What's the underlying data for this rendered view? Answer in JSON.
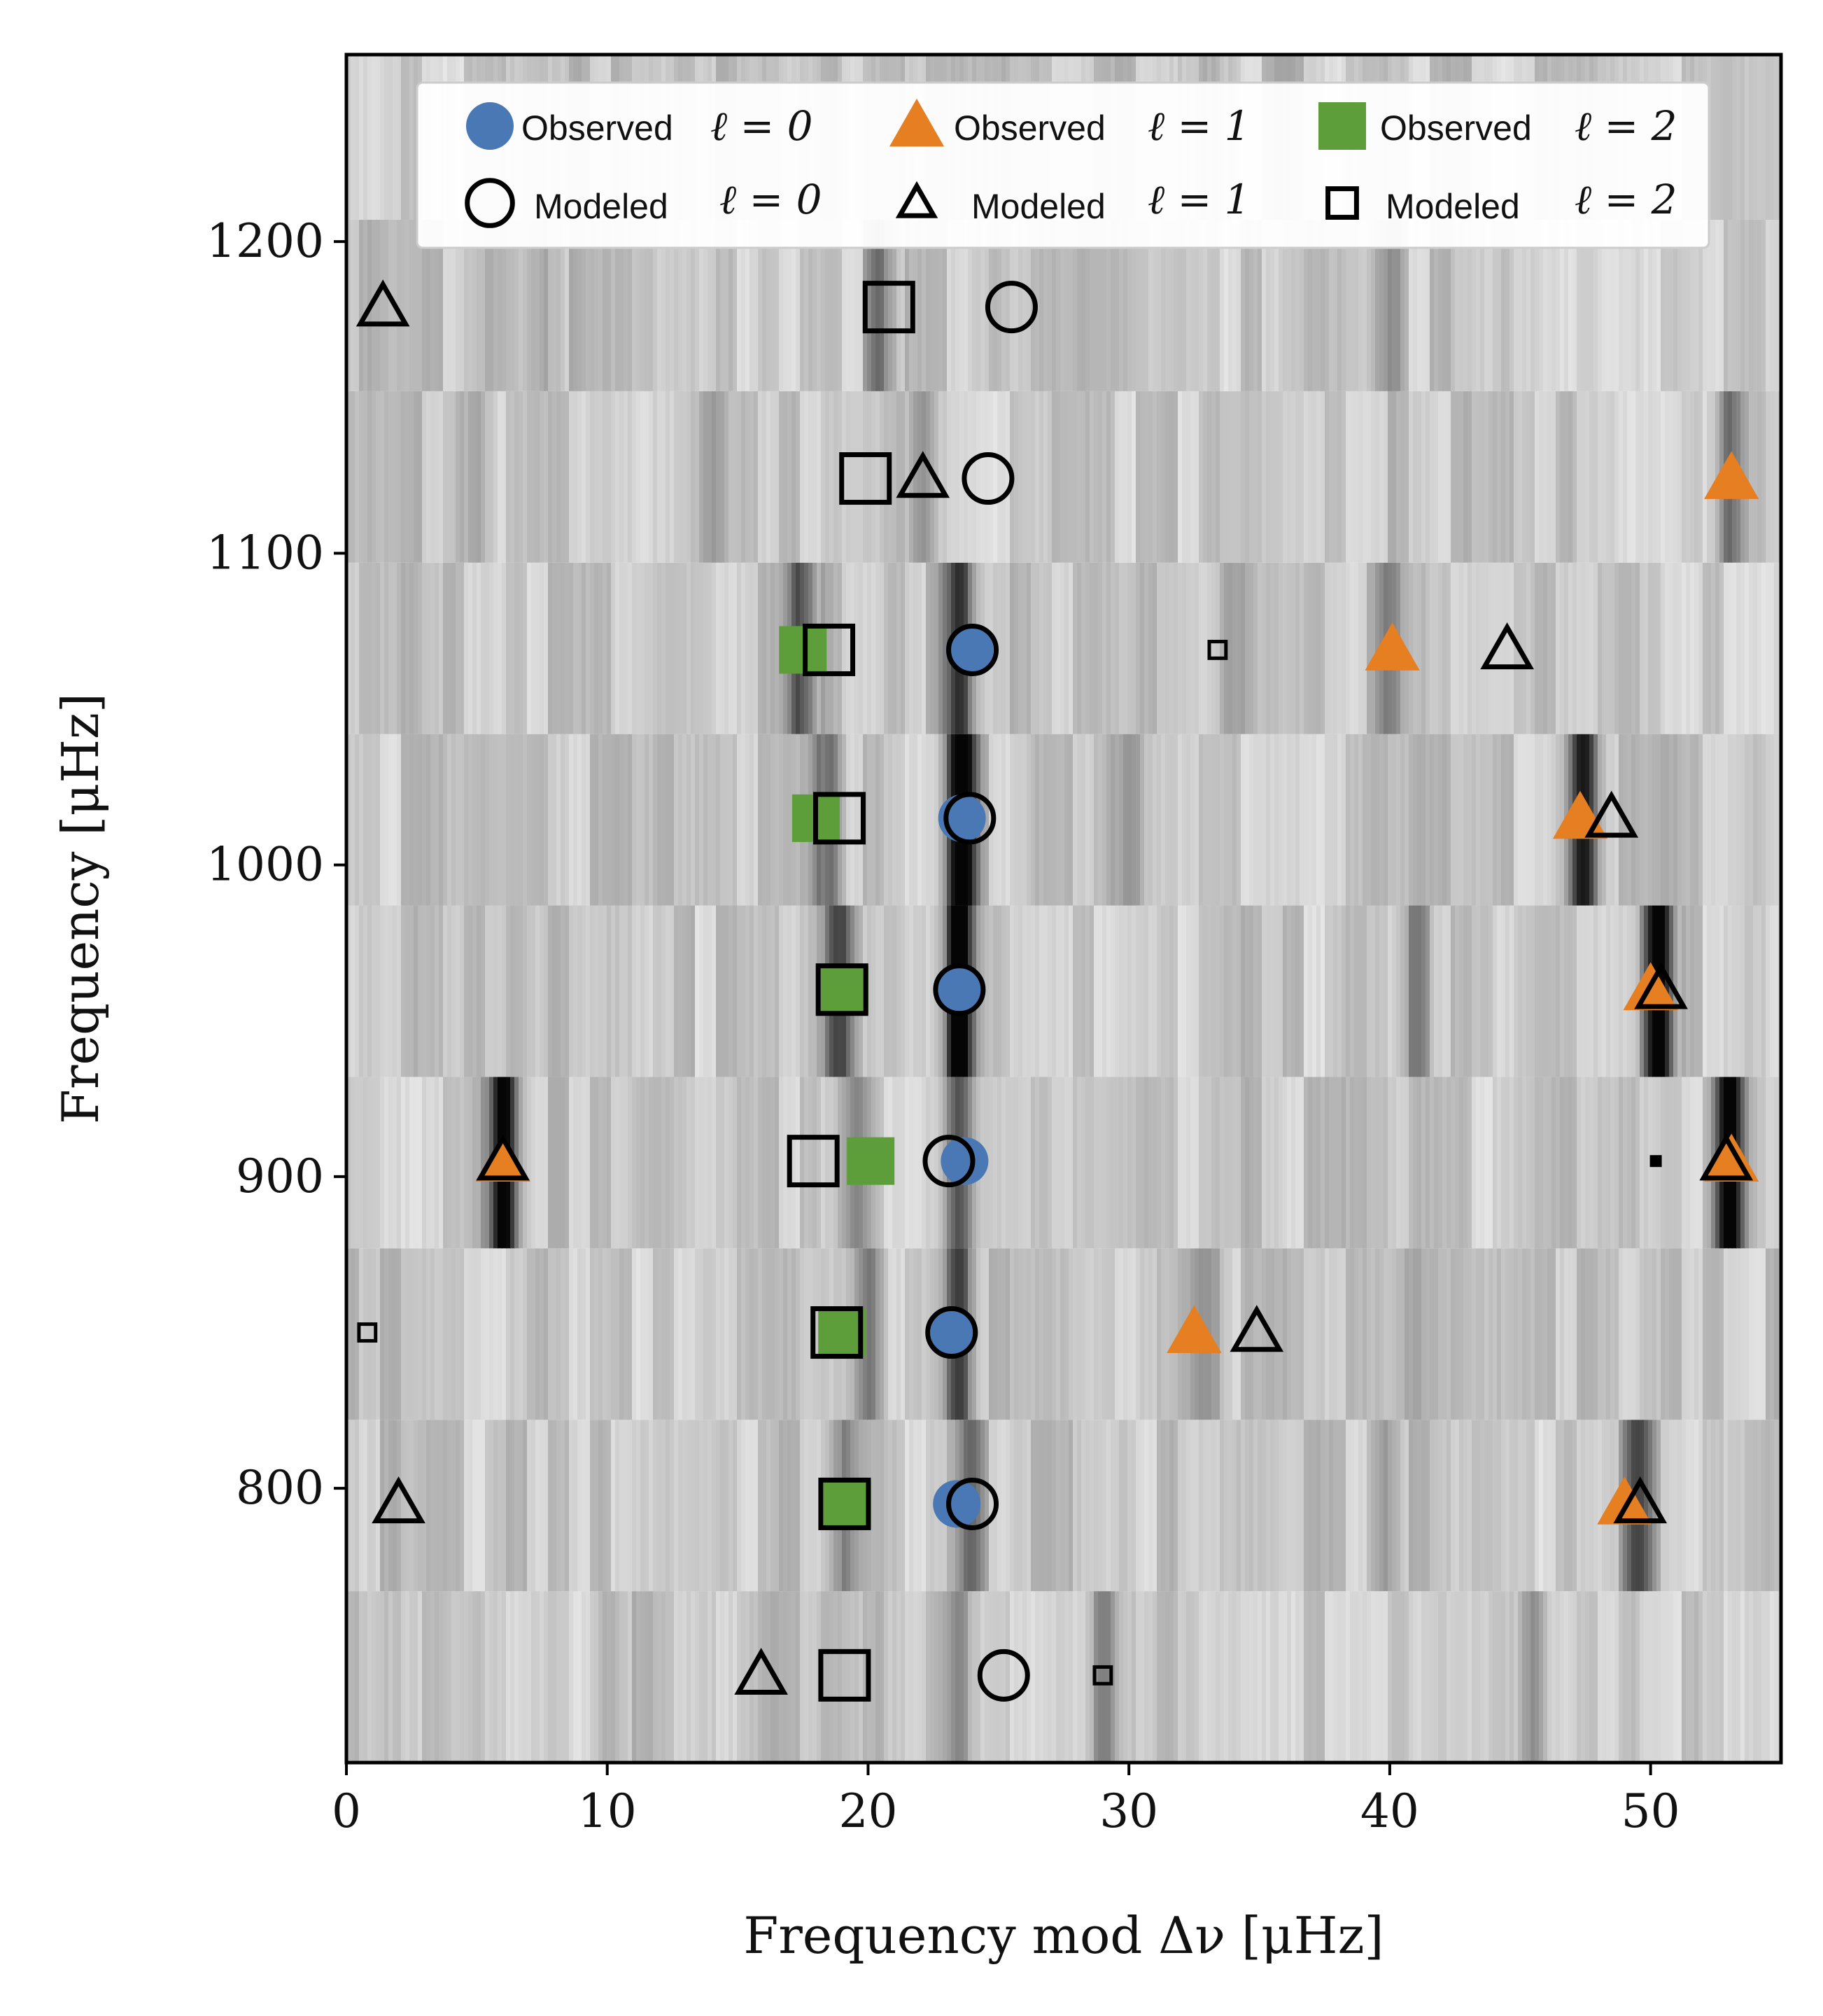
{
  "chart_data": {
    "type": "scatter",
    "title": "",
    "xlabel": "Frequency mod Δν [μHz]",
    "ylabel": "Frequency [μHz]",
    "xlim": [
      0,
      55
    ],
    "ylim": [
      712,
      1260
    ],
    "xticks": [
      0,
      10,
      20,
      30,
      40,
      50
    ],
    "yticks": [
      800,
      900,
      1000,
      1100,
      1200
    ],
    "grid": false,
    "legend_position": "top",
    "background": "grayscale echelle power spectrum (rows of width Δν)",
    "echelle_rows": [
      {
        "y_from": 712,
        "y_to": 767,
        "peaks": [
          [
            23.5,
            0.2
          ],
          [
            29,
            0.25
          ],
          [
            45.5,
            0.3
          ],
          [
            10,
            0.15
          ]
        ]
      },
      {
        "y_from": 767,
        "y_to": 822,
        "peaks": [
          [
            24,
            0.35
          ],
          [
            49.5,
            0.5
          ],
          [
            19,
            0.25
          ],
          [
            40,
            0.2
          ]
        ]
      },
      {
        "y_from": 822,
        "y_to": 877,
        "peaks": [
          [
            23.5,
            0.5
          ],
          [
            20,
            0.35
          ],
          [
            33,
            0.2
          ],
          [
            41,
            0.2
          ]
        ]
      },
      {
        "y_from": 877,
        "y_to": 932,
        "peaks": [
          [
            6,
            0.95
          ],
          [
            23.5,
            0.5
          ],
          [
            53,
            0.9
          ],
          [
            19.5,
            0.3
          ]
        ]
      },
      {
        "y_from": 932,
        "y_to": 987,
        "peaks": [
          [
            23.5,
            0.9
          ],
          [
            18.8,
            0.6
          ],
          [
            50.3,
            1.0
          ],
          [
            41,
            0.25
          ]
        ]
      },
      {
        "y_from": 987,
        "y_to": 1042,
        "peaks": [
          [
            23.6,
            1.0
          ],
          [
            47.4,
            0.75
          ],
          [
            18.5,
            0.4
          ],
          [
            30,
            0.25
          ]
        ]
      },
      {
        "y_from": 1042,
        "y_to": 1097,
        "peaks": [
          [
            23.5,
            0.6
          ],
          [
            17.5,
            0.5
          ],
          [
            40,
            0.3
          ],
          [
            34,
            0.2
          ]
        ]
      },
      {
        "y_from": 1097,
        "y_to": 1152,
        "peaks": [
          [
            22,
            0.3
          ],
          [
            53,
            0.35
          ],
          [
            14,
            0.2
          ],
          [
            5,
            0.2
          ]
        ]
      },
      {
        "y_from": 1152,
        "y_to": 1207,
        "peaks": [
          [
            20.5,
            0.3
          ],
          [
            40,
            0.2
          ],
          [
            8,
            0.15
          ]
        ]
      },
      {
        "y_from": 1207,
        "y_to": 1260,
        "peaks": [
          [
            9,
            0.1
          ],
          [
            36,
            0.1
          ]
        ]
      }
    ],
    "series": [
      {
        "name": "Observed ℓ = 0",
        "marker": "filled-circle",
        "color": "#4a78b5",
        "size": 1,
        "points": [
          [
            23.4,
            795
          ],
          [
            23.3,
            850
          ],
          [
            23.7,
            905
          ],
          [
            23.5,
            960
          ],
          [
            23.6,
            1015
          ],
          [
            23.9,
            1069
          ]
        ]
      },
      {
        "name": "Observed ℓ = 1",
        "marker": "filled-triangle",
        "color": "#e67e22",
        "size": 1,
        "points": [
          [
            49,
            795
          ],
          [
            32.5,
            850
          ],
          [
            6,
            905
          ],
          [
            53.1,
            905
          ],
          [
            50,
            960
          ],
          [
            47.3,
            1015
          ],
          [
            40.1,
            1069
          ],
          [
            53.1,
            1124
          ]
        ]
      },
      {
        "name": "Observed ℓ = 2",
        "marker": "filled-square",
        "color": "#5d9e3a",
        "size": 1,
        "points": [
          [
            19.2,
            795
          ],
          [
            19,
            850
          ],
          [
            20.1,
            905
          ],
          [
            19.1,
            960
          ],
          [
            18,
            1015
          ],
          [
            17.5,
            1069
          ]
        ]
      },
      {
        "name": "Modeled ℓ = 0",
        "marker": "open-circle",
        "color": "#000000",
        "size": 1,
        "points": [
          [
            25.2,
            740
          ],
          [
            24,
            795
          ],
          [
            23.2,
            850
          ],
          [
            23.1,
            905
          ],
          [
            23.5,
            960
          ],
          [
            23.9,
            1015
          ],
          [
            24,
            1069
          ],
          [
            24.6,
            1124
          ],
          [
            25.5,
            1179
          ]
        ]
      },
      {
        "name": "Modeled ℓ = 1",
        "marker": "open-triangle",
        "color": "#000000",
        "size": 1,
        "points": [
          [
            15.9,
            740
          ],
          [
            2,
            795
          ],
          [
            49.6,
            795
          ],
          [
            34.9,
            850
          ],
          [
            6,
            905
          ],
          [
            52.9,
            905
          ],
          [
            50.4,
            960
          ],
          [
            48.5,
            1015
          ],
          [
            44.5,
            1069
          ],
          [
            22.1,
            1124
          ],
          [
            1.4,
            1179
          ]
        ]
      },
      {
        "name": "Modeled ℓ = 2",
        "marker": "open-square",
        "color": "#000000",
        "size": 1,
        "points": [
          [
            29,
            740
          ],
          [
            19.1,
            740
          ],
          [
            19.1,
            795
          ],
          [
            0.8,
            850
          ],
          [
            18.8,
            850
          ],
          [
            17.9,
            905
          ],
          [
            50.2,
            905
          ],
          [
            19,
            960
          ],
          [
            18.9,
            1015
          ],
          [
            33.4,
            1069
          ],
          [
            18.5,
            1069
          ],
          [
            19.9,
            1124
          ],
          [
            20.8,
            1179
          ]
        ]
      },
      {
        "name": "Modeled ℓ = 2 (small)",
        "marker": "small-open-square",
        "color": "#000000",
        "size": 0.35,
        "points": [
          [
            29,
            740
          ],
          [
            0.8,
            850
          ],
          [
            33.4,
            1069
          ]
        ]
      },
      {
        "name": "Modeled (tiny)",
        "marker": "tiny-square",
        "color": "#000000",
        "size": 0.25,
        "points": [
          [
            50.2,
            905
          ]
        ]
      }
    ]
  },
  "legend": {
    "row1": [
      {
        "text": "Observed",
        "math": "ℓ = 0",
        "marker": "filled-circle",
        "color": "#4a78b5"
      },
      {
        "text": "Observed",
        "math": "ℓ = 1",
        "marker": "filled-triangle",
        "color": "#e67e22"
      },
      {
        "text": "Observed",
        "math": "ℓ = 2",
        "marker": "filled-square",
        "color": "#5d9e3a"
      }
    ],
    "row2": [
      {
        "text": "Modeled",
        "math": "ℓ = 0",
        "marker": "open-circle",
        "color": "#000000"
      },
      {
        "text": "Modeled",
        "math": "ℓ = 1",
        "marker": "open-triangle",
        "color": "#000000"
      },
      {
        "text": "Modeled",
        "math": "ℓ = 2",
        "marker": "open-square",
        "color": "#000000"
      }
    ]
  }
}
